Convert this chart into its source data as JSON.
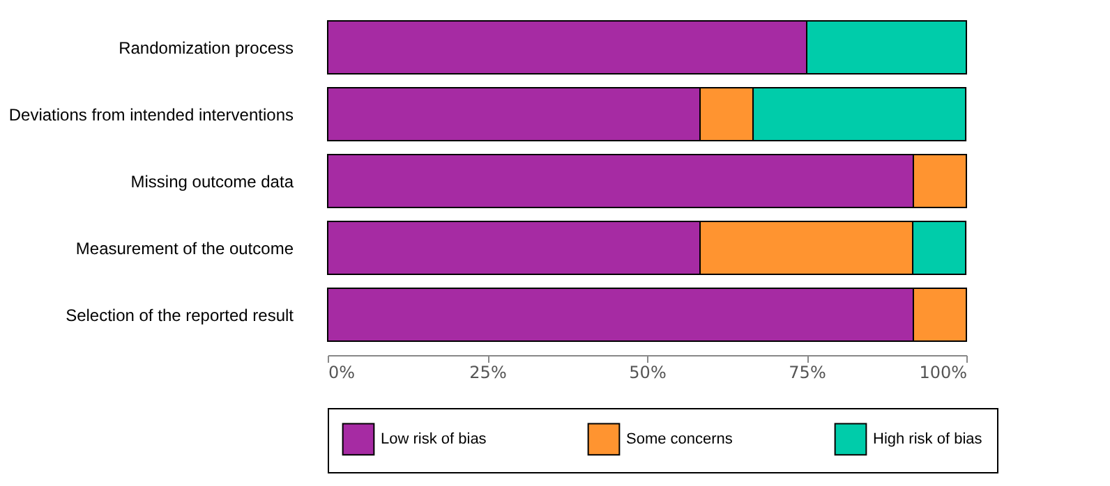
{
  "chart_data": {
    "type": "bar",
    "orientation": "horizontal",
    "stacked": true,
    "categories": [
      "Randomization process",
      "Deviations from intended interventions",
      "Missing outcome data",
      "Measurement of the outcome",
      "Selection of the reported result"
    ],
    "series": [
      {
        "name": "Low risk of bias",
        "color": "#a62ba3",
        "values": [
          75,
          58.3,
          91.7,
          58.3,
          91.7
        ]
      },
      {
        "name": "Some concerns",
        "color": "#ff9430",
        "values": [
          null,
          8.3,
          8.3,
          33.3,
          8.3
        ]
      },
      {
        "name": "High risk of bias",
        "color": "#00ccaa",
        "values": [
          25,
          33.3,
          null,
          8.3,
          null
        ]
      }
    ],
    "xlim": [
      0,
      100
    ],
    "xticks": [
      {
        "value": 0,
        "label": "0%"
      },
      {
        "value": 25,
        "label": "25%"
      },
      {
        "value": 50,
        "label": "50%"
      },
      {
        "value": 75,
        "label": "75%"
      },
      {
        "value": 100,
        "label": "100%"
      }
    ],
    "grid": false,
    "legend": "bottom"
  }
}
